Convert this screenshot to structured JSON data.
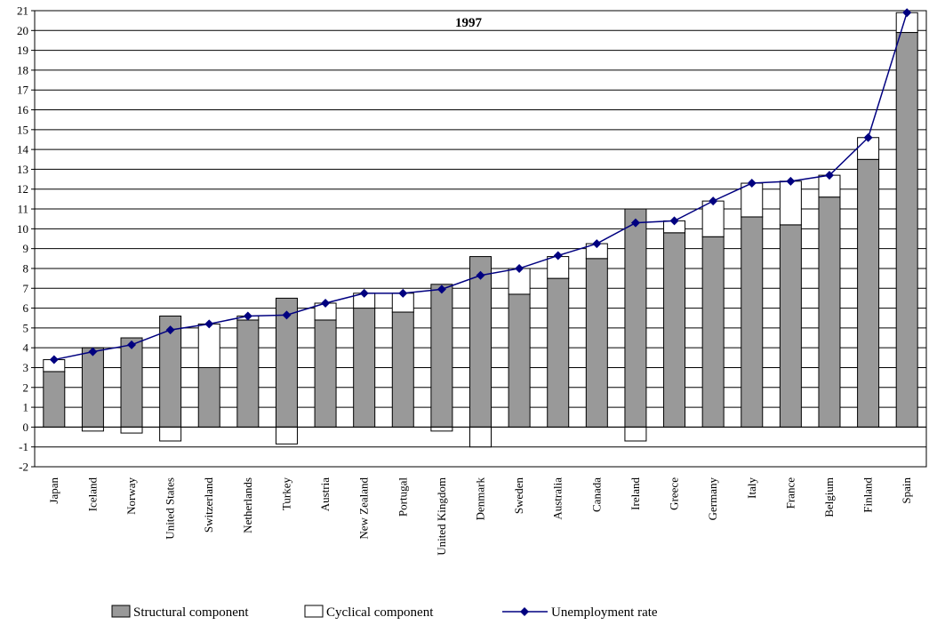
{
  "chart_data": {
    "type": "bar",
    "stacked": true,
    "title": "1997",
    "xlabel": "",
    "ylabel": "",
    "ylim": [
      -2,
      21
    ],
    "yticks": [
      -2,
      -1,
      0,
      1,
      2,
      3,
      4,
      5,
      6,
      7,
      8,
      9,
      10,
      11,
      12,
      13,
      14,
      15,
      16,
      17,
      18,
      19,
      20,
      21
    ],
    "grid": true,
    "legend_position": "bottom",
    "categories": [
      "Japan",
      "Iceland",
      "Norway",
      "United States",
      "Switzerland",
      "Netherlands",
      "Turkey",
      "Austria",
      "New Zealand",
      "Portugal",
      "United Kingdom",
      "Denmark",
      "Sweden",
      "Australia",
      "Canada",
      "Ireland",
      "Greece",
      "Germany",
      "Italy",
      "France",
      "Belgium",
      "Finland",
      "Spain"
    ],
    "series": [
      {
        "name": "Structural component",
        "kind": "bar",
        "color": "#999999",
        "values": [
          2.8,
          4.0,
          4.5,
          5.6,
          3.0,
          5.4,
          6.5,
          5.4,
          6.0,
          5.8,
          7.2,
          8.6,
          6.7,
          7.5,
          8.5,
          11.0,
          9.8,
          9.6,
          10.6,
          10.2,
          11.6,
          13.5,
          19.9
        ]
      },
      {
        "name": "Cyclical component",
        "kind": "bar",
        "color": "#ffffff",
        "values": [
          0.6,
          -0.2,
          -0.3,
          -0.7,
          2.2,
          0.2,
          -0.85,
          0.85,
          0.75,
          0.95,
          -0.2,
          -1.0,
          1.3,
          1.1,
          0.75,
          -0.7,
          0.6,
          1.8,
          1.7,
          2.2,
          1.1,
          1.1,
          1.0
        ]
      },
      {
        "name": "Unemployment rate",
        "kind": "line",
        "color": "#000080",
        "values": [
          3.4,
          3.8,
          4.15,
          4.9,
          5.2,
          5.6,
          5.65,
          6.25,
          6.75,
          6.75,
          6.95,
          7.65,
          8.0,
          8.65,
          9.25,
          10.3,
          10.4,
          11.4,
          12.3,
          12.4,
          12.7,
          14.6,
          20.9
        ]
      }
    ]
  }
}
